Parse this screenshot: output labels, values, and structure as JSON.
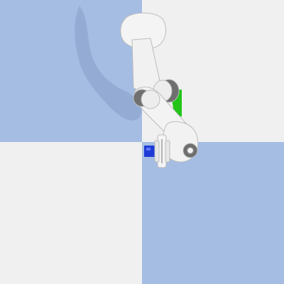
{
  "scene": {
    "floor_colors": {
      "blue": "#a5bde3",
      "light": "#f0f0f0"
    },
    "robot": {
      "kind": "robot-arm",
      "link_color": "#f4f4f4",
      "joint_color": "#6f6f6f"
    },
    "target_marker": {
      "color": "#1f3bd6"
    },
    "goal_marker": {
      "color": "#22c41a"
    }
  }
}
